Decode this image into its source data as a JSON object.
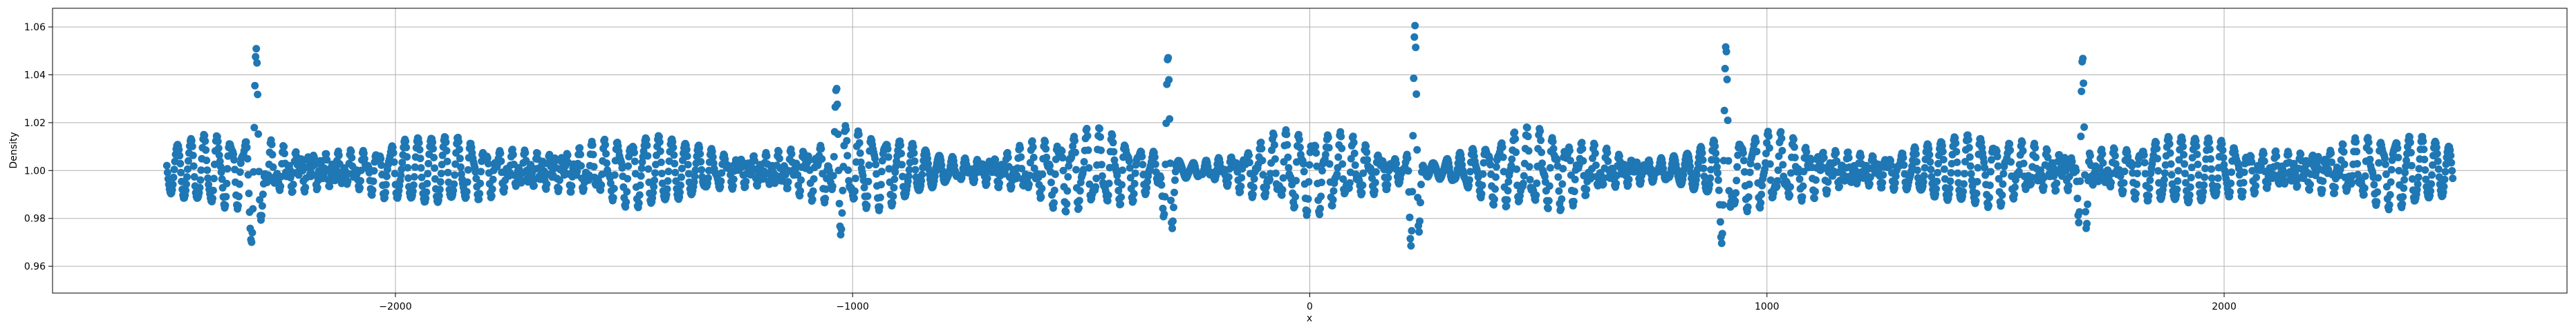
{
  "chart_data": {
    "type": "scatter",
    "title": "",
    "xlabel": "x",
    "ylabel": "Density",
    "xlim": [
      -2750,
      2750
    ],
    "ylim": [
      0.9488,
      1.0678
    ],
    "xticks": [
      -2000,
      -1000,
      0,
      1000,
      2000
    ],
    "xtick_labels": [
      "−2000",
      "−1000",
      "0",
      "1000",
      "2000"
    ],
    "yticks": [
      0.96,
      0.98,
      1.0,
      1.02,
      1.04,
      1.06
    ],
    "ytick_labels": [
      "0.96",
      "0.98",
      "1.00",
      "1.02",
      "1.04",
      "1.06"
    ],
    "grid": true,
    "marker_color": "#1f77b4",
    "series": [
      {
        "name": "",
        "x_range": [
          -2500,
          2500
        ],
        "y_min": 0.956,
        "y_max": 1.062,
        "peaks": [
          {
            "x": -2305,
            "amplitude": 0.048
          },
          {
            "x": -1035,
            "amplitude": 0.045
          },
          {
            "x": -310,
            "amplitude": 0.045
          },
          {
            "x": 230,
            "amplitude": 0.062
          },
          {
            "x": 910,
            "amplitude": 0.04
          },
          {
            "x": 1690,
            "amplitude": 0.046
          }
        ]
      }
    ]
  }
}
